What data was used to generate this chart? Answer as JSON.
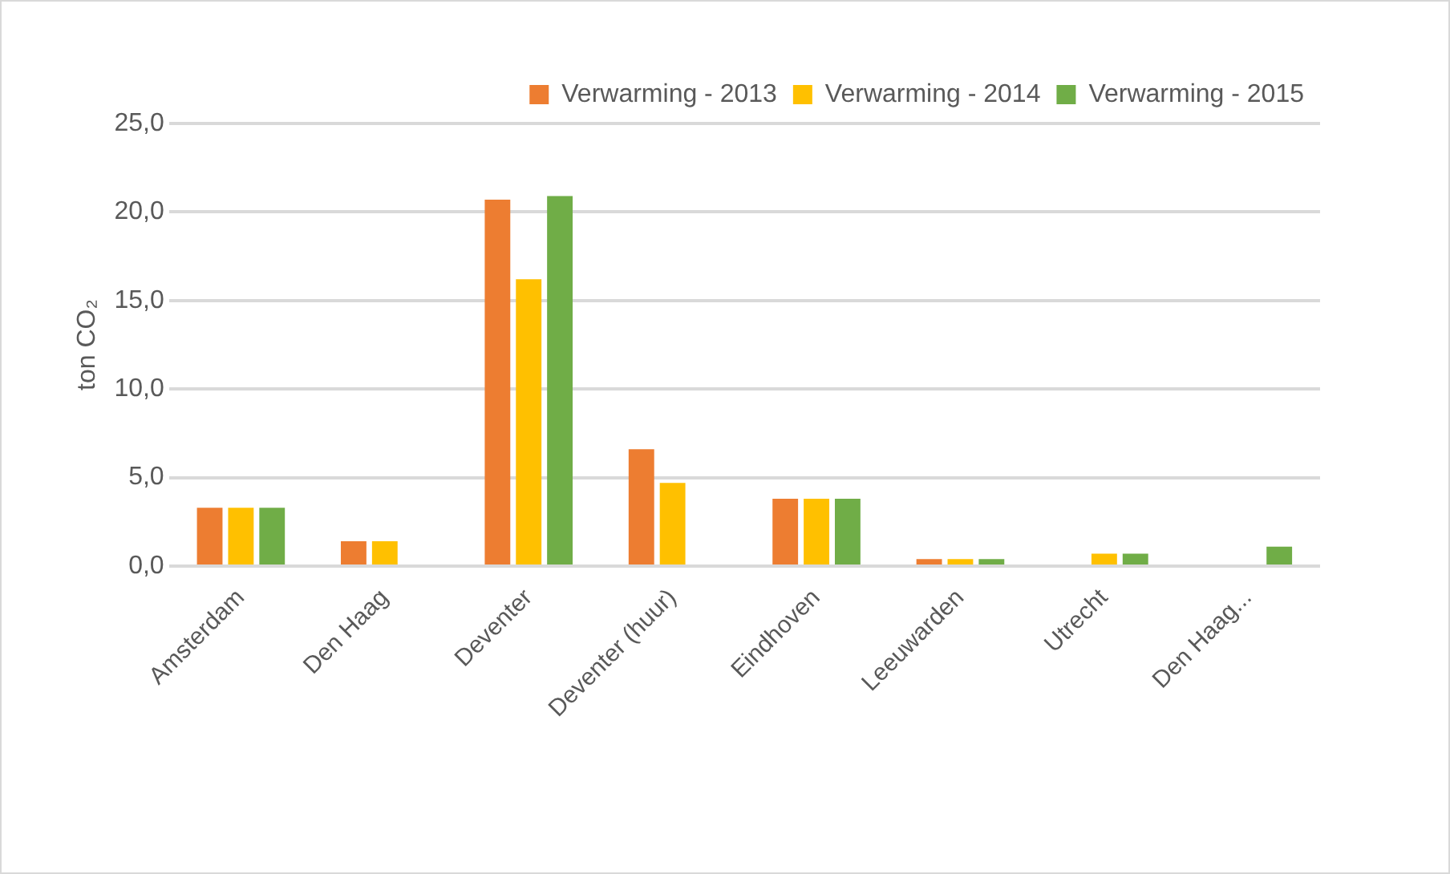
{
  "chart_data": {
    "type": "bar",
    "ylabel": "ton CO₂",
    "categories": [
      "Amsterdam",
      "Den Haag",
      "Deventer",
      "Deventer (huur)",
      "Eindhoven",
      "Leeuwarden",
      "Utrecht",
      "Den Haag..."
    ],
    "series": [
      {
        "name": "Verwarming - 2013",
        "color": "#ed7d31",
        "values": [
          3.3,
          1.4,
          20.7,
          6.6,
          3.8,
          0.4,
          null,
          null
        ]
      },
      {
        "name": "Verwarming - 2014",
        "color": "#ffc000",
        "values": [
          3.3,
          1.4,
          16.2,
          4.7,
          3.8,
          0.4,
          0.7,
          null
        ]
      },
      {
        "name": "Verwarming - 2015",
        "color": "#70ad47",
        "values": [
          3.3,
          null,
          20.9,
          null,
          3.8,
          0.4,
          0.7,
          1.1
        ]
      }
    ],
    "ylim": [
      0,
      25
    ],
    "yticks": [
      {
        "value": 0,
        "label": "0,0"
      },
      {
        "value": 5,
        "label": "5,0"
      },
      {
        "value": 10,
        "label": "10,0"
      },
      {
        "value": 15,
        "label": "15,0"
      },
      {
        "value": 20,
        "label": "20,0"
      },
      {
        "value": 25,
        "label": "25,0"
      }
    ],
    "grid": "y",
    "legend": "top right"
  }
}
